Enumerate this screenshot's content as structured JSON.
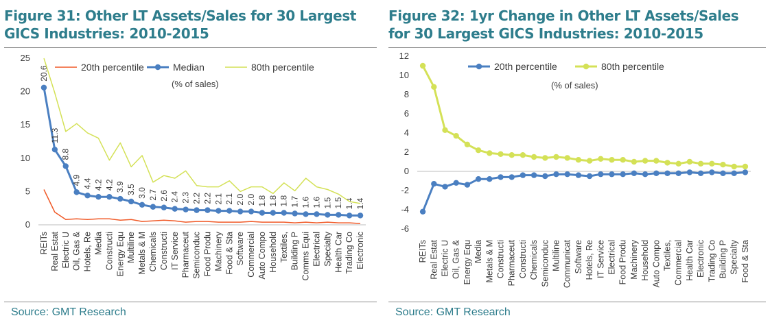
{
  "chart_data": [
    {
      "type": "line",
      "title": "Figure 31: Other LT Assets/Sales for 30 Largest GICS Industries: 2010-2015",
      "title_lines": [
        "Figure 31: Other LT Assets/Sales for 30 Largest",
        "GICS Industries: 2010-2015"
      ],
      "unit_note": "(% of sales)",
      "source": "Source: GMT Research",
      "ylim": [
        0,
        25
      ],
      "yticks": [
        0,
        5,
        10,
        15,
        20,
        25
      ],
      "categories": [
        "REITs",
        "Real Estat",
        "Electric U",
        "Oil, Gas &",
        "Hotels, Re",
        "Media",
        "Constructi",
        "Energy Equ",
        "Multiline",
        "Metals & M",
        "Chemicals",
        "Constructi",
        "IT Service",
        "Pharmaceut",
        "Semiconduc",
        "Food Produ",
        "Machinery",
        "Food & Sta",
        "Software",
        "Commercial",
        "Auto Compo",
        "Household",
        "Textiles,",
        "Building P",
        "Comms Equi",
        "Electrical",
        "Specialty",
        "Health Car",
        "Trading Co",
        "Electronic"
      ],
      "series": [
        {
          "name": "20th percentile",
          "color": "#f05a28",
          "style": "line",
          "values": [
            5.3,
            1.9,
            0.8,
            0.9,
            0.8,
            0.9,
            0.9,
            0.7,
            0.8,
            0.5,
            0.6,
            0.7,
            0.6,
            0.4,
            0.5,
            0.5,
            0.4,
            0.4,
            0.4,
            0.5,
            0.4,
            0.4,
            0.4,
            0.3,
            0.4,
            0.3,
            0.4,
            0.3,
            0.3,
            0.2
          ]
        },
        {
          "name": "Median",
          "color": "#4a7fc1",
          "style": "line-marker",
          "values": [
            20.6,
            11.3,
            8.8,
            4.9,
            4.4,
            4.2,
            4.2,
            3.9,
            3.5,
            3.0,
            2.7,
            2.6,
            2.4,
            2.3,
            2.2,
            2.2,
            2.1,
            2.1,
            2.0,
            2.0,
            1.8,
            1.8,
            1.8,
            1.7,
            1.6,
            1.6,
            1.5,
            1.5,
            1.4,
            1.4
          ],
          "labels": [
            "20.6",
            "11.3",
            "8.8",
            "4.9",
            "4.4",
            "4.2",
            "4.2",
            "3.9",
            "3.5",
            "3.0",
            "2.7",
            "2.6",
            "2.4",
            "2.3",
            "2.2",
            "2.2",
            "2.1",
            "2.1",
            "2.0",
            "2.0",
            "1.8",
            "1.8",
            "1.8",
            "1.7",
            "1.6",
            "1.6",
            "1.5",
            "1.5",
            "1.4",
            "1.4"
          ]
        },
        {
          "name": "80th percentile",
          "color": "#d4e157",
          "style": "line",
          "values": [
            26,
            19.8,
            14.0,
            15.2,
            13.8,
            13.0,
            9.7,
            12.3,
            8.7,
            10.4,
            6.4,
            7.4,
            7.0,
            8.1,
            5.9,
            5.7,
            5.7,
            6.6,
            5.0,
            5.7,
            5.7,
            4.7,
            6.3,
            5.1,
            7.0,
            5.7,
            5.3,
            4.6,
            3.5,
            3.2
          ]
        }
      ]
    },
    {
      "type": "line",
      "title": "Figure 32: 1yr Change in Other LT Assets/Sales for 30 Largest GICS Industries: 2010-2015",
      "title_lines": [
        "Figure 32: 1yr Change in Other LT Assets/Sales",
        "for 30 Largest GICS Industries: 2010-2015"
      ],
      "unit_note": "(% of sales)",
      "source": "Source: GMT Research",
      "ylim": [
        -6,
        12
      ],
      "yticks": [
        -6,
        -4,
        -2,
        0,
        2,
        4,
        6,
        8,
        10,
        12
      ],
      "categories": [
        "REITs",
        "Real Estat",
        "Electric U",
        "Oil, Gas &",
        "Energy Equ",
        "Media",
        "Metals & M",
        "Constructi",
        "Pharmaceut",
        "Constructi",
        "Chemicals",
        "Semiconduc",
        "Multiline",
        "Communicat",
        "Software",
        "Hotels, Re",
        "IT Service",
        "Electrical",
        "Food Produ",
        "Machinery",
        "Household",
        "Auto Compo",
        "Textiles,",
        "Commercial",
        "Health Car",
        "Electronic",
        "Trading Co",
        "Building P",
        "Specialty",
        "Food & Sta"
      ],
      "series": [
        {
          "name": "20th percentile",
          "color": "#4a7fc1",
          "style": "line-marker",
          "values": [
            -4.2,
            -1.3,
            -1.6,
            -1.2,
            -1.4,
            -0.8,
            -0.8,
            -0.6,
            -0.6,
            -0.4,
            -0.4,
            -0.5,
            -0.3,
            -0.3,
            -0.4,
            -0.5,
            -0.3,
            -0.3,
            -0.3,
            -0.2,
            -0.3,
            -0.2,
            -0.2,
            -0.2,
            -0.1,
            -0.2,
            -0.1,
            -0.2,
            -0.2,
            -0.1
          ]
        },
        {
          "name": "80th percentile",
          "color": "#d4e157",
          "style": "line-marker",
          "values": [
            11.0,
            8.8,
            4.3,
            3.7,
            2.8,
            2.2,
            1.9,
            1.8,
            1.7,
            1.7,
            1.5,
            1.4,
            1.5,
            1.4,
            1.2,
            1.1,
            1.3,
            1.2,
            1.2,
            1.0,
            1.1,
            1.1,
            0.9,
            0.8,
            1.0,
            0.8,
            0.8,
            0.7,
            0.5,
            0.5
          ]
        }
      ]
    }
  ]
}
